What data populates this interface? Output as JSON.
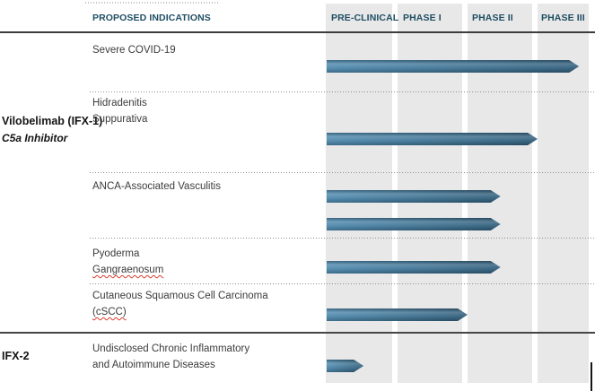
{
  "header": {
    "indications_label": "PROPOSED INDICATIONS",
    "phases": [
      "PRE-CLINICAL",
      "PHASE I",
      "PHASE II",
      "PHASE III"
    ]
  },
  "programs": {
    "ifx1": {
      "name": "Vilobelimab (IFX-1)",
      "moa": "C5a Inhibitor"
    },
    "ifx2": {
      "name": "IFX-2"
    }
  },
  "rows": [
    {
      "lines": [
        "Severe COVID-19"
      ]
    },
    {
      "lines": [
        "Hidradenitis",
        "Suppurativa"
      ]
    },
    {
      "lines": [
        "ANCA-Associated Vasculitis"
      ]
    },
    {
      "lines": [
        "Pyoderma",
        "Gangraenosum"
      ]
    },
    {
      "lines": [
        "Cutaneous Squamous Cell Carcinoma",
        "(cSCC)"
      ]
    },
    {
      "lines": [
        "Undisclosed Chronic Inflammatory",
        "and Autoimmune Diseases"
      ]
    }
  ],
  "colors": {
    "header_text": "#1F4E63",
    "arrow_gradient_start": "#4C88AD",
    "arrow_gradient_end": "#2E5C79",
    "column_background": "#E8E8E8",
    "spellcheck_underline": "#D83A2E"
  },
  "chart_data": {
    "type": "bar",
    "orientation": "horizontal",
    "title": "PROPOSED INDICATIONS",
    "x_axis": {
      "labels": [
        "PRE-CLINICAL",
        "PHASE I",
        "PHASE II",
        "PHASE III"
      ],
      "range": [
        0,
        4
      ]
    },
    "legend": "none",
    "grid": "off",
    "groups": [
      {
        "program": "Vilobelimab (IFX-1)",
        "mechanism": "C5a Inhibitor",
        "bars": [
          {
            "indication": "Severe COVID-19",
            "phase_progress": 3.81,
            "phase_reached": "Phase III"
          },
          {
            "indication": "Hidradenitis Suppurativa",
            "phase_progress": 3.0,
            "phase_reached": "Phase II complete"
          },
          {
            "indication": "ANCA-Associated Vasculitis",
            "phase_progress": 2.51,
            "phase_reached": "Phase II"
          },
          {
            "indication": "ANCA-Associated Vasculitis",
            "phase_progress": 2.51,
            "phase_reached": "Phase II"
          },
          {
            "indication": "Pyoderma Gangraenosum",
            "phase_progress": 2.51,
            "phase_reached": "Phase II"
          },
          {
            "indication": "Cutaneous Squamous Cell Carcinoma (cSCC)",
            "phase_progress": 2.0,
            "phase_reached": "Phase I complete"
          }
        ]
      },
      {
        "program": "IFX-2",
        "bars": [
          {
            "indication": "Undisclosed Chronic Inflammatory and Autoimmune Diseases",
            "phase_progress": 0.57,
            "phase_reached": "Pre-clinical"
          }
        ]
      }
    ]
  }
}
